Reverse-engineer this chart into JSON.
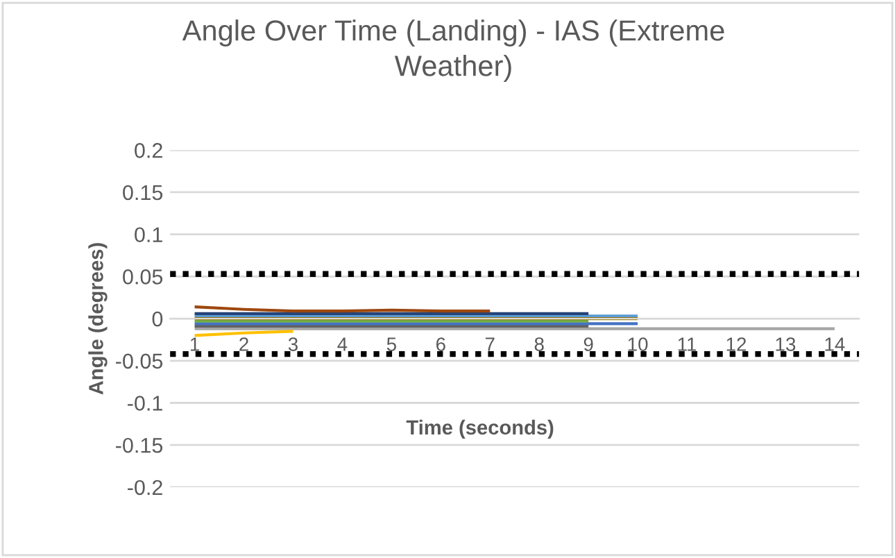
{
  "chart_data": {
    "type": "line",
    "title": "Angle Over Time (Landing) - IAS (Extreme Weather)",
    "xlabel": "Time (seconds)",
    "ylabel": "Angle (degrees)",
    "categories": [
      "1",
      "2",
      "3",
      "4",
      "5",
      "6",
      "7",
      "8",
      "9",
      "10",
      "11",
      "12",
      "13",
      "14"
    ],
    "series": [
      {
        "color": "#a5a5a5",
        "values": [
          -0.012,
          -0.012,
          -0.012,
          -0.012,
          -0.012,
          -0.012,
          -0.012,
          -0.012,
          -0.012,
          -0.012,
          -0.012,
          -0.012,
          -0.012,
          -0.012
        ]
      },
      {
        "color": "#ffc000",
        "values": [
          -0.02,
          -0.017,
          -0.015,
          null,
          null,
          null,
          null,
          null,
          null,
          null,
          null,
          null,
          null,
          null
        ]
      },
      {
        "color": "#636363",
        "values": [
          -0.009,
          -0.009,
          -0.009,
          -0.009,
          -0.009,
          -0.009,
          -0.009,
          -0.009,
          -0.009,
          null,
          null,
          null,
          null,
          null
        ]
      },
      {
        "color": "#4472c4",
        "values": [
          -0.006,
          -0.006,
          -0.006,
          -0.006,
          -0.006,
          -0.006,
          -0.006,
          -0.006,
          -0.006,
          -0.006,
          null,
          null,
          null,
          null
        ]
      },
      {
        "color": "#70ad47",
        "values": [
          -0.003,
          -0.003,
          -0.003,
          -0.003,
          -0.003,
          -0.003,
          -0.003,
          -0.003,
          -0.003,
          null,
          null,
          null,
          null,
          null
        ]
      },
      {
        "color": "#5b9bd5",
        "values": [
          0.003,
          0.003,
          0.003,
          0.003,
          0.003,
          0.003,
          0.003,
          0.003,
          0.003,
          0.003,
          null,
          null,
          null,
          null
        ]
      },
      {
        "color": "#264478",
        "values": [
          0.006,
          0.006,
          0.006,
          0.006,
          0.006,
          0.006,
          0.006,
          0.006,
          0.006,
          null,
          null,
          null,
          null,
          null
        ]
      },
      {
        "color": "#997300",
        "values": [
          0.0,
          0.0,
          0.0,
          0.0,
          0.0,
          0.0,
          0.0,
          0.0,
          0.0,
          0.0,
          null,
          null,
          null,
          null
        ]
      },
      {
        "color": "#9e480e",
        "values": [
          0.014,
          0.011,
          0.009,
          0.009,
          0.01,
          0.009,
          0.009,
          null,
          null,
          null,
          null,
          null,
          null,
          null
        ]
      }
    ],
    "ylim": [
      -0.2,
      0.2
    ],
    "yticks": [
      -0.2,
      -0.15,
      -0.1,
      -0.05,
      0,
      0.05,
      0.1,
      0.15,
      0.2
    ],
    "grid": "y",
    "ref_lines": [
      {
        "axis": "y",
        "value": 0.053,
        "color": "#000000",
        "line_style": "dotted"
      },
      {
        "axis": "y",
        "value": -0.042,
        "color": "#000000",
        "line_style": "dotted"
      }
    ]
  }
}
